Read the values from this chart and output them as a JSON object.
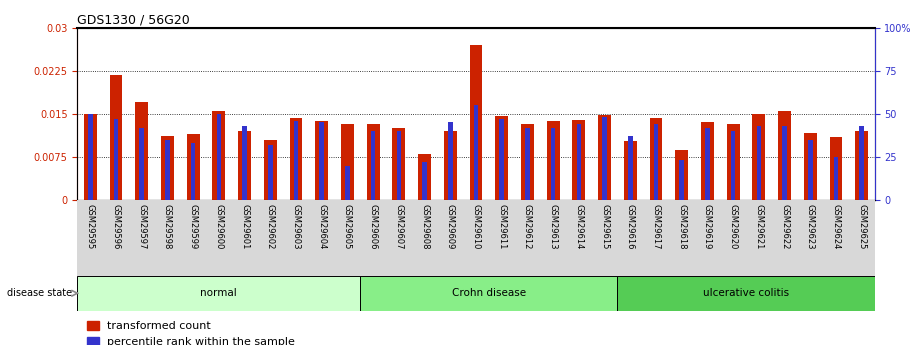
{
  "title": "GDS1330 / 56G20",
  "samples": [
    "GSM29595",
    "GSM29596",
    "GSM29597",
    "GSM29598",
    "GSM29599",
    "GSM29600",
    "GSM29601",
    "GSM29602",
    "GSM29603",
    "GSM29604",
    "GSM29605",
    "GSM29606",
    "GSM29607",
    "GSM29608",
    "GSM29609",
    "GSM29610",
    "GSM29611",
    "GSM29612",
    "GSM29613",
    "GSM29614",
    "GSM29615",
    "GSM29616",
    "GSM29617",
    "GSM29618",
    "GSM29619",
    "GSM29620",
    "GSM29621",
    "GSM29622",
    "GSM29623",
    "GSM29624",
    "GSM29625"
  ],
  "red_values": [
    0.015,
    0.0218,
    0.017,
    0.0112,
    0.0115,
    0.0155,
    0.012,
    0.0105,
    0.0143,
    0.0138,
    0.0133,
    0.0133,
    0.0125,
    0.008,
    0.012,
    0.027,
    0.0147,
    0.0132,
    0.0138,
    0.014,
    0.0148,
    0.0103,
    0.0143,
    0.0088,
    0.0135,
    0.0133,
    0.015,
    0.0155,
    0.0117,
    0.011,
    0.012
  ],
  "blue_values": [
    50,
    47,
    42,
    35,
    33,
    50,
    43,
    32,
    46,
    45,
    20,
    40,
    40,
    22,
    45,
    55,
    47,
    42,
    42,
    44,
    48,
    37,
    44,
    23,
    42,
    40,
    43,
    43,
    35,
    25,
    43
  ],
  "ylim_left": [
    0,
    0.03
  ],
  "ylim_right": [
    0,
    100
  ],
  "yticks_left": [
    0,
    0.0075,
    0.015,
    0.0225,
    0.03
  ],
  "ytick_labels_left": [
    "0",
    "0.0075",
    "0.015",
    "0.0225",
    "0.03"
  ],
  "yticks_right": [
    0,
    25,
    50,
    75,
    100
  ],
  "ytick_labels_right": [
    "0",
    "25",
    "50",
    "75",
    "100%"
  ],
  "grid_values": [
    0.0075,
    0.015,
    0.0225
  ],
  "red_color": "#cc2200",
  "blue_color": "#3333cc",
  "groups": [
    {
      "label": "normal",
      "start": 0,
      "end": 11,
      "color": "#ccffcc"
    },
    {
      "label": "Crohn disease",
      "start": 11,
      "end": 21,
      "color": "#88ee88"
    },
    {
      "label": "ulcerative colitis",
      "start": 21,
      "end": 31,
      "color": "#55cc55"
    }
  ],
  "title_fontsize": 9,
  "tick_fontsize": 7,
  "sample_fontsize": 6,
  "legend_fontsize": 8,
  "disease_state_label": "disease state",
  "legend_items": [
    "transformed count",
    "percentile rank within the sample"
  ]
}
